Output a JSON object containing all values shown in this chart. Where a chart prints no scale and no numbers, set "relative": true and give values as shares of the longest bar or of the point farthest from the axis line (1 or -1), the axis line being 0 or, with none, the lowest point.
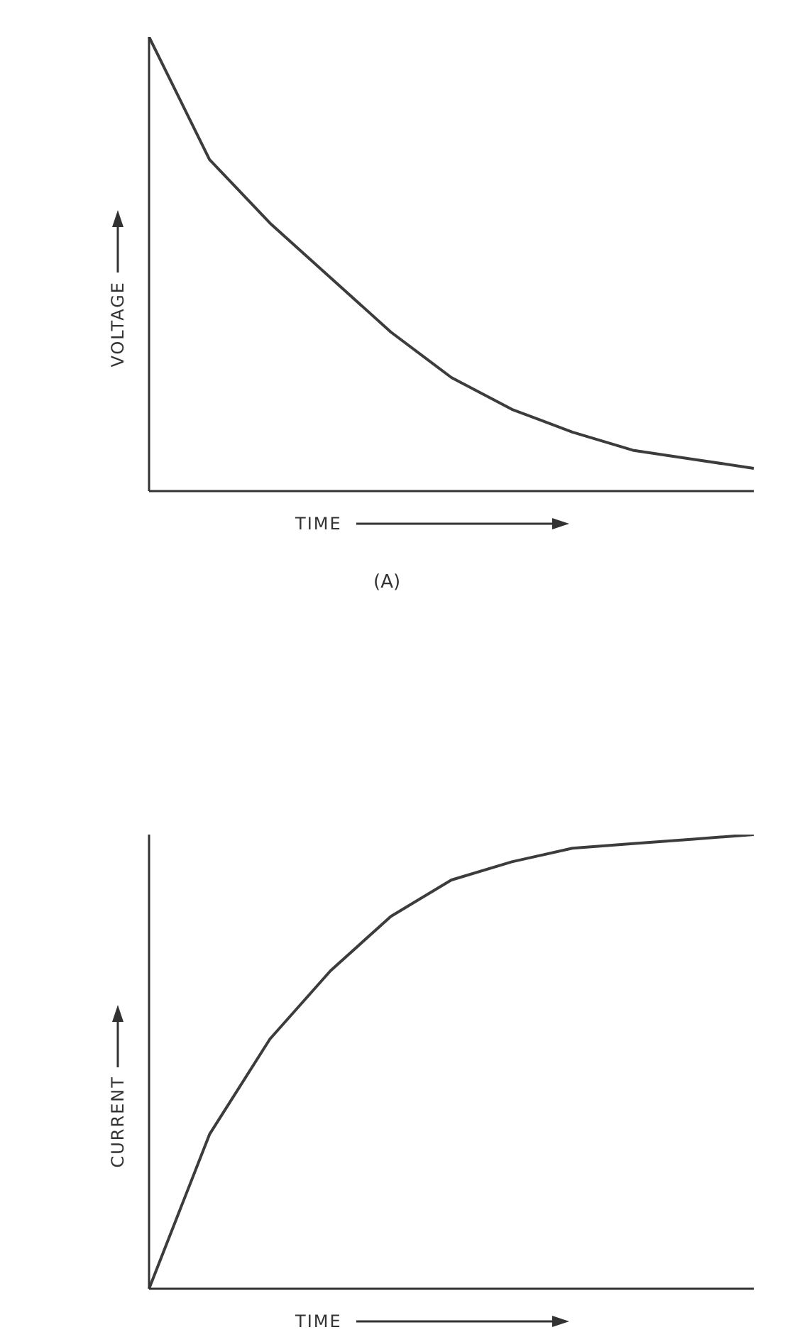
{
  "chart_data": [
    {
      "type": "line",
      "relative": true,
      "ylabel": "VOLTAGE",
      "xlabel": "TIME",
      "annotations": [
        "(A)"
      ],
      "categories": [
        null,
        null,
        null,
        null,
        null,
        null,
        null,
        null,
        null,
        null,
        null
      ],
      "series": [
        {
          "color": "#3c3c3c",
          "values": [
            1.0,
            0.73,
            0.59,
            0.47,
            0.35,
            0.25,
            0.18,
            0.13,
            0.09,
            0.07,
            0.05
          ]
        }
      ],
      "grid": false,
      "legend": false,
      "marker": "none",
      "line_style": "solid"
    },
    {
      "type": "line",
      "relative": true,
      "ylabel": "CURRENT",
      "xlabel": "TIME",
      "categories": [
        null,
        null,
        null,
        null,
        null,
        null,
        null,
        null,
        null,
        null,
        null
      ],
      "series": [
        {
          "color": "#3c3c3c",
          "values": [
            0,
            0.34,
            0.55,
            0.7,
            0.82,
            0.9,
            0.94,
            0.97,
            0.98,
            0.99,
            1.0
          ]
        }
      ],
      "grid": false,
      "legend": false,
      "marker": "none",
      "line_style": "solid"
    }
  ]
}
